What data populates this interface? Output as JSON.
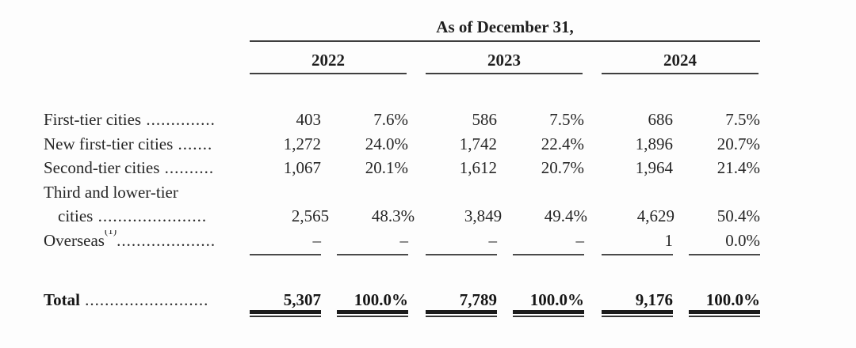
{
  "title": "As of December 31,",
  "years": [
    "2022",
    "2023",
    "2024"
  ],
  "rows": [
    {
      "label": "First-tier cities",
      "sup": "",
      "dots": " ..............",
      "values": [
        "403",
        "7.6%",
        "586",
        "7.5%",
        "686",
        "7.5%"
      ]
    },
    {
      "label": "New first-tier cities",
      "sup": "",
      "dots": " .......",
      "values": [
        "1,272",
        "24.0%",
        "1,742",
        "22.4%",
        "1,896",
        "20.7%"
      ]
    },
    {
      "label": "Second-tier cities",
      "sup": "",
      "dots": " ..........",
      "values": [
        "1,067",
        "20.1%",
        "1,612",
        "20.7%",
        "1,964",
        "21.4%"
      ]
    },
    {
      "label": "Third and lower-tier",
      "sup": "",
      "dots": "",
      "values": [
        "",
        "",
        "",
        "",
        "",
        ""
      ]
    },
    {
      "label": "cities",
      "sup": "",
      "dots": " ......................",
      "values": [
        "2,565",
        "48.3%",
        "3,849",
        "49.4%",
        "4,629",
        "50.4%"
      ]
    },
    {
      "label": "Overseas",
      "sup": "(1)",
      "dots": "....................",
      "values": [
        "–",
        "–",
        "–",
        "–",
        "1",
        "0.0%"
      ]
    }
  ],
  "total": {
    "label": "Total",
    "dots": " .........................",
    "values": [
      "5,307",
      "100.0%",
      "7,789",
      "100.0%",
      "9,176",
      "100.0%"
    ]
  },
  "colors": {
    "text": "#262626",
    "rule": "#3f3f3f",
    "total_bar": "#1b1b1b"
  }
}
